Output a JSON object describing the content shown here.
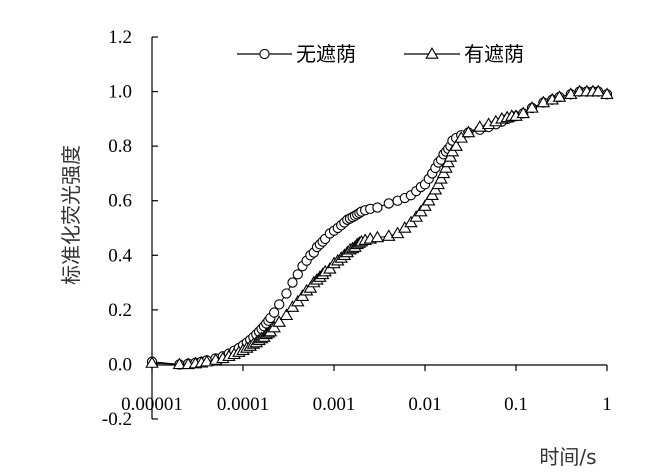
{
  "chart_data": {
    "type": "scatter",
    "title": "",
    "xlabel": "时间/s",
    "ylabel": "标准化荧光强度",
    "x_scale": "log",
    "xlim": [
      1e-05,
      1
    ],
    "ylim": [
      -0.2,
      1.2
    ],
    "x_ticks": [
      "0.00001",
      "0.0001",
      "0.001",
      "0.01",
      "0.1",
      "1"
    ],
    "x_tick_values": [
      1e-05,
      0.0001,
      0.001,
      0.01,
      0.1,
      1
    ],
    "y_ticks": [
      "-0.2",
      "0.0",
      "0.2",
      "0.4",
      "0.6",
      "0.8",
      "1.0",
      "1.2"
    ],
    "y_tick_values": [
      -0.2,
      0.0,
      0.2,
      0.4,
      0.6,
      0.8,
      1.0,
      1.2
    ],
    "grid": false,
    "legend_position": "top",
    "series": [
      {
        "name": "无遮荫",
        "marker": "circle",
        "x": [
          1e-05,
          2e-05,
          2.5e-05,
          3e-05,
          3.5e-05,
          4e-05,
          5e-05,
          6e-05,
          7e-05,
          8e-05,
          9e-05,
          0.0001,
          0.00011,
          0.00012,
          0.00013,
          0.00014,
          0.00015,
          0.00016,
          0.00017,
          0.00018,
          0.00019,
          0.0002,
          0.00022,
          0.00025,
          0.0003,
          0.00035,
          0.0004,
          0.00045,
          0.0005,
          0.00055,
          0.0006,
          0.00065,
          0.0007,
          0.00075,
          0.0008,
          0.0009,
          0.001,
          0.0011,
          0.0012,
          0.0013,
          0.0014,
          0.0015,
          0.0016,
          0.0017,
          0.0018,
          0.0019,
          0.002,
          0.0022,
          0.0025,
          0.003,
          0.004,
          0.005,
          0.006,
          0.007,
          0.008,
          0.009,
          0.01,
          0.011,
          0.012,
          0.013,
          0.014,
          0.015,
          0.016,
          0.017,
          0.018,
          0.019,
          0.02,
          0.022,
          0.025,
          0.03,
          0.04,
          0.05,
          0.06,
          0.07,
          0.08,
          0.09,
          0.1,
          0.12,
          0.15,
          0.2,
          0.25,
          0.3,
          0.4,
          0.5,
          0.6,
          0.7,
          0.8,
          1
        ],
        "y": [
          0.01,
          0.0,
          0.003,
          0.006,
          0.01,
          0.015,
          0.022,
          0.03,
          0.04,
          0.05,
          0.06,
          0.07,
          0.08,
          0.09,
          0.1,
          0.11,
          0.12,
          0.13,
          0.14,
          0.15,
          0.16,
          0.17,
          0.19,
          0.22,
          0.26,
          0.3,
          0.33,
          0.36,
          0.38,
          0.4,
          0.41,
          0.43,
          0.44,
          0.45,
          0.46,
          0.48,
          0.49,
          0.5,
          0.51,
          0.52,
          0.53,
          0.535,
          0.54,
          0.545,
          0.55,
          0.555,
          0.56,
          0.565,
          0.57,
          0.575,
          0.59,
          0.6,
          0.61,
          0.62,
          0.635,
          0.65,
          0.66,
          0.68,
          0.7,
          0.72,
          0.74,
          0.75,
          0.77,
          0.78,
          0.79,
          0.8,
          0.82,
          0.83,
          0.84,
          0.85,
          0.86,
          0.87,
          0.88,
          0.89,
          0.9,
          0.905,
          0.91,
          0.92,
          0.94,
          0.96,
          0.97,
          0.98,
          0.99,
          1.0,
          1.0,
          1.0,
          1.0,
          0.99
        ]
      },
      {
        "name": "有遮荫",
        "marker": "triangle",
        "x": [
          1e-05,
          2e-05,
          2.5e-05,
          3e-05,
          3.5e-05,
          4e-05,
          5e-05,
          6e-05,
          7e-05,
          8e-05,
          9e-05,
          0.0001,
          0.00011,
          0.00012,
          0.00013,
          0.00014,
          0.00015,
          0.00016,
          0.00017,
          0.00018,
          0.00019,
          0.0002,
          0.00022,
          0.00025,
          0.0003,
          0.00035,
          0.0004,
          0.00045,
          0.0005,
          0.00055,
          0.0006,
          0.00065,
          0.0007,
          0.00075,
          0.0008,
          0.0009,
          0.001,
          0.0011,
          0.0012,
          0.0013,
          0.0014,
          0.0015,
          0.0016,
          0.0017,
          0.0018,
          0.0019,
          0.002,
          0.0022,
          0.0025,
          0.003,
          0.004,
          0.005,
          0.006,
          0.007,
          0.008,
          0.009,
          0.01,
          0.011,
          0.012,
          0.013,
          0.014,
          0.015,
          0.016,
          0.017,
          0.018,
          0.019,
          0.02,
          0.022,
          0.025,
          0.03,
          0.04,
          0.05,
          0.06,
          0.07,
          0.08,
          0.09,
          0.1,
          0.12,
          0.15,
          0.2,
          0.25,
          0.3,
          0.4,
          0.5,
          0.6,
          0.7,
          0.8,
          1
        ],
        "y": [
          0.005,
          0.0,
          0.0,
          0.003,
          0.006,
          0.01,
          0.016,
          0.022,
          0.03,
          0.037,
          0.045,
          0.052,
          0.06,
          0.067,
          0.075,
          0.08,
          0.088,
          0.095,
          0.1,
          0.11,
          0.115,
          0.12,
          0.135,
          0.155,
          0.18,
          0.21,
          0.23,
          0.25,
          0.27,
          0.28,
          0.3,
          0.31,
          0.32,
          0.33,
          0.34,
          0.35,
          0.37,
          0.38,
          0.39,
          0.4,
          0.41,
          0.42,
          0.425,
          0.43,
          0.44,
          0.445,
          0.45,
          0.455,
          0.46,
          0.465,
          0.47,
          0.48,
          0.5,
          0.52,
          0.54,
          0.56,
          0.58,
          0.6,
          0.62,
          0.64,
          0.66,
          0.68,
          0.7,
          0.72,
          0.74,
          0.76,
          0.78,
          0.8,
          0.83,
          0.85,
          0.87,
          0.88,
          0.89,
          0.9,
          0.905,
          0.91,
          0.91,
          0.92,
          0.94,
          0.96,
          0.97,
          0.98,
          0.99,
          1.0,
          1.0,
          1.0,
          1.0,
          0.99
        ]
      }
    ]
  }
}
